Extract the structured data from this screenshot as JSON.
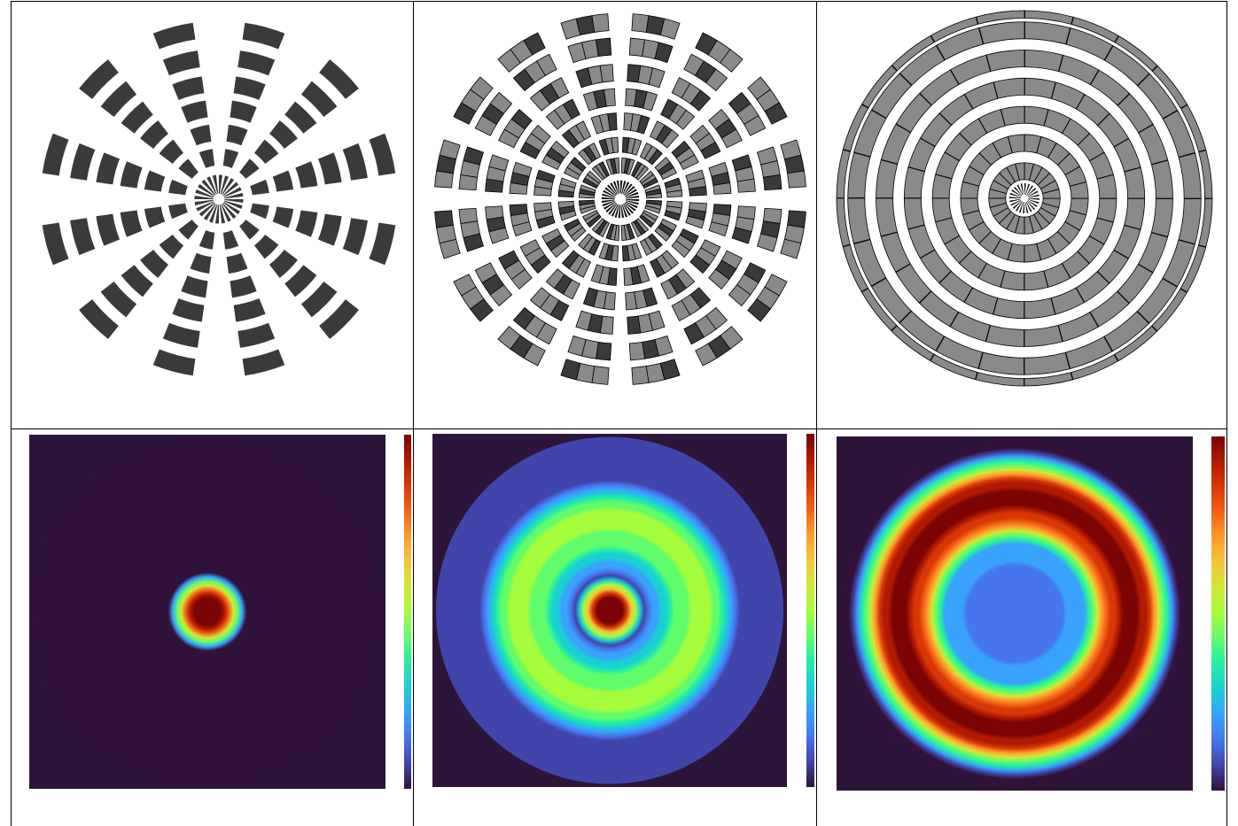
{
  "panels": [
    {
      "id": "mask-a",
      "kind": "segmented-spokes",
      "spokes": 12,
      "rings": [
        [
          0.18,
          0.27
        ],
        [
          0.31,
          0.4
        ],
        [
          0.44,
          0.53
        ],
        [
          0.57,
          0.66
        ],
        [
          0.71,
          0.8
        ],
        [
          0.86,
          0.95
        ]
      ],
      "fill": "#3a3a3a",
      "two_tone": false
    },
    {
      "id": "mask-b",
      "kind": "segmented-spokes",
      "spokes": 16,
      "rings": [
        [
          0.14,
          0.22
        ],
        [
          0.25,
          0.33
        ],
        [
          0.37,
          0.46
        ],
        [
          0.5,
          0.59
        ],
        [
          0.63,
          0.72
        ],
        [
          0.77,
          0.86
        ],
        [
          0.9,
          0.99
        ]
      ],
      "fill": "#8a8a8a",
      "fill_dark": "#3a3a3a",
      "two_tone": true
    },
    {
      "id": "mask-c",
      "kind": "concentric-rings",
      "segments": 24,
      "rings": [
        [
          0.1,
          0.19
        ],
        [
          0.25,
          0.34
        ],
        [
          0.4,
          0.49
        ],
        [
          0.55,
          0.64
        ],
        [
          0.7,
          0.79
        ],
        [
          0.85,
          0.94
        ],
        [
          0.96,
          1.0
        ]
      ],
      "fill": "#8a8a8a"
    },
    {
      "id": "intensity-a",
      "kind": "intensity-map",
      "profile": [
        {
          "r": 0.0,
          "v": 1.0
        },
        {
          "r": 0.09,
          "v": 1.0
        },
        {
          "r": 0.23,
          "v": 0.0
        }
      ],
      "background": "#2d1539"
    },
    {
      "id": "intensity-b",
      "kind": "intensity-map",
      "profile": [
        {
          "r": 0.0,
          "v": 1.0
        },
        {
          "r": 0.08,
          "v": 1.0
        },
        {
          "r": 0.2,
          "v": 0.1
        },
        {
          "r": 0.4,
          "v": 0.45
        },
        {
          "r": 0.58,
          "v": 0.5
        },
        {
          "r": 0.75,
          "v": 0.1
        },
        {
          "r": 1.0,
          "v": 0.06
        }
      ],
      "background": "#2d1539"
    },
    {
      "id": "intensity-c",
      "kind": "intensity-map",
      "profile": [
        {
          "r": 0.0,
          "v": 0.12
        },
        {
          "r": 0.4,
          "v": 0.2
        },
        {
          "r": 0.5,
          "v": 0.7
        },
        {
          "r": 0.62,
          "v": 1.0
        },
        {
          "r": 0.75,
          "v": 0.95
        },
        {
          "r": 0.88,
          "v": 0.3
        },
        {
          "r": 0.95,
          "v": 0.0
        }
      ],
      "background": "#2d1539"
    }
  ],
  "colors": {
    "colormap": [
      "#30123b",
      "#4145ab",
      "#4675ed",
      "#39a2fc",
      "#1bcfd4",
      "#24eca6",
      "#61fc6c",
      "#a4fc3b",
      "#d1e834",
      "#f3c63a",
      "#fe9b2d",
      "#f36315",
      "#d93806",
      "#b11901",
      "#7a0403"
    ],
    "grid": "#000000",
    "mask_edge": "#000000"
  }
}
